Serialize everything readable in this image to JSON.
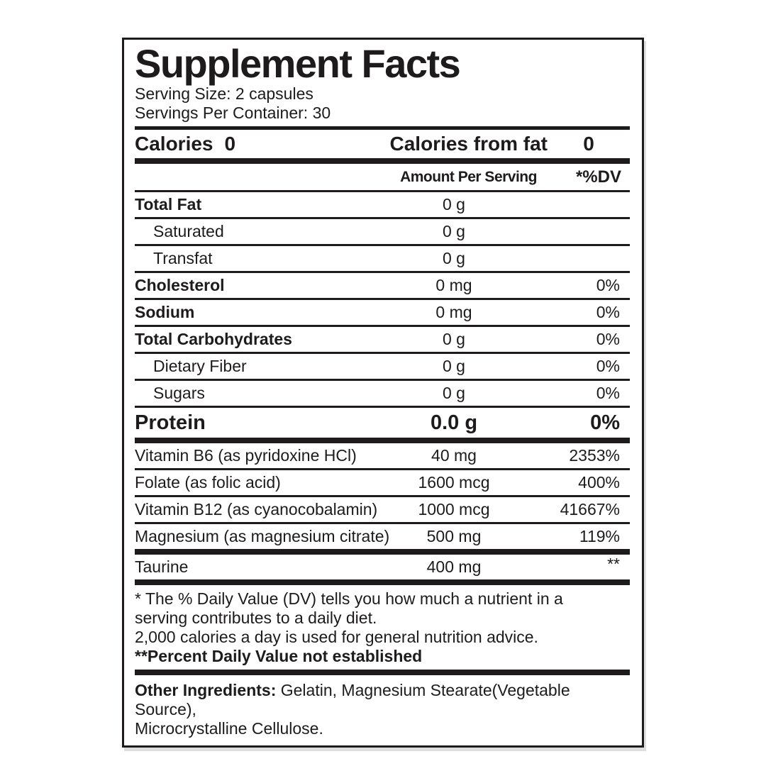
{
  "panel": {
    "title": "Supplement Facts",
    "serving_size": "Serving Size: 2 capsules",
    "servings_per_container": "Servings Per Container: 30",
    "calories": {
      "label": "Calories",
      "value": "0",
      "from_fat_label": "Calories from fat",
      "from_fat_value": "0"
    },
    "columns": {
      "amount": "Amount Per Serving",
      "dv": "*%DV"
    },
    "rows": [
      {
        "name": "Total Fat",
        "amount": "0 g",
        "dv": "",
        "style": "bold",
        "sep": "thin"
      },
      {
        "name": "Saturated",
        "amount": "0 g",
        "dv": "",
        "style": "indent",
        "sep": "thin"
      },
      {
        "name": "Transfat",
        "amount": "0 g",
        "dv": "",
        "style": "indent",
        "sep": "thin"
      },
      {
        "name": "Cholesterol",
        "amount": "0 mg",
        "dv": "0%",
        "style": "bold",
        "sep": "thin"
      },
      {
        "name": "Sodium",
        "amount": "0 mg",
        "dv": "0%",
        "style": "bold",
        "sep": "thin"
      },
      {
        "name": "Total Carbohydrates",
        "amount": "0 g",
        "dv": "0%",
        "style": "bold",
        "sep": "thin"
      },
      {
        "name": "Dietary Fiber",
        "amount": "0 g",
        "dv": "0%",
        "style": "indent",
        "sep": "thin"
      },
      {
        "name": "Sugars",
        "amount": "0 g",
        "dv": "0%",
        "style": "indent",
        "sep": "thin"
      },
      {
        "name": "Protein",
        "amount": "0.0 g",
        "dv": "0%",
        "style": "protein",
        "sep": "thick"
      },
      {
        "name": "Vitamin B6 (as pyridoxine HCl)",
        "amount": "40 mg",
        "dv": "2353%",
        "style": "plain",
        "sep": "thin"
      },
      {
        "name": "Folate (as folic acid)",
        "amount": "1600 mcg",
        "dv": "400%",
        "style": "plain",
        "sep": "thin"
      },
      {
        "name": "Vitamin B12 (as cyanocobalamin)",
        "amount": "1000 mcg",
        "dv": "41667%",
        "style": "plain",
        "sep": "thin"
      },
      {
        "name": "Magnesium (as magnesium citrate)",
        "amount": "500 mg",
        "dv": "119%",
        "style": "plain",
        "sep": "thick"
      },
      {
        "name": "Taurine",
        "amount": "400 mg",
        "dv": "**",
        "style": "plain",
        "sep": "thick",
        "dv_super": true
      }
    ],
    "footnotes": [
      "* The % Daily Value (DV) tells you how much a nutrient in a",
      "serving contributes to a daily diet.",
      "2,000 calories a day is used for general nutrition advice.",
      "**Percent Daily Value not established"
    ],
    "other_ingredients": {
      "label": "Other Ingredients:",
      "lines": [
        "Gelatin, Magnesium Stearate(Vegetable Source),",
        "Microcrystalline Cellulose."
      ]
    }
  },
  "colors": {
    "text": "#1d1b1c",
    "rule": "#1d1b1c",
    "background": "#ffffff"
  }
}
